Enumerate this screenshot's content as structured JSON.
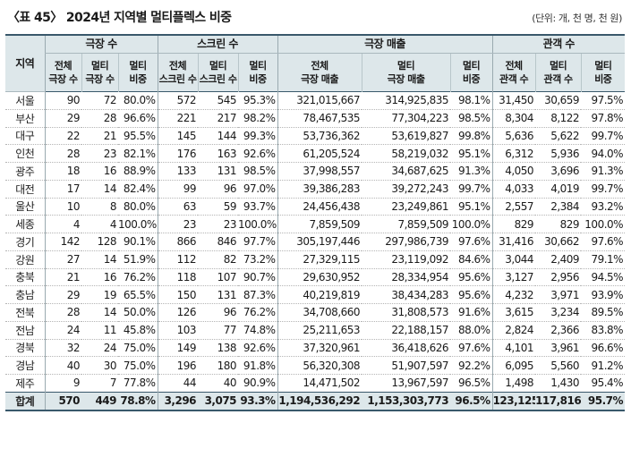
{
  "title": "〈표 45〉 2024년 지역별 멀티플렉스 비중",
  "unit": "(단위: 개, 천 명, 천 원)",
  "headers": {
    "region": "지역",
    "groups": [
      "극장 수",
      "스크린 수",
      "극장 매출",
      "관객 수"
    ],
    "sub": [
      [
        "전체",
        "극장 수"
      ],
      [
        "멀티",
        "극장 수"
      ],
      [
        "멀티",
        "비중"
      ],
      [
        "전체",
        "스크린 수"
      ],
      [
        "멀티",
        "스크린 수"
      ],
      [
        "멀티",
        "비중"
      ],
      [
        "전체",
        "극장 매출"
      ],
      [
        "멀티",
        "극장 매출"
      ],
      [
        "멀티",
        "비중"
      ],
      [
        "전체",
        "관객 수"
      ],
      [
        "멀티",
        "관객 수"
      ],
      [
        "멀티",
        "비중"
      ]
    ]
  },
  "rows": [
    [
      "서울",
      "90",
      "72",
      "80.0%",
      "572",
      "545",
      "95.3%",
      "321,015,667",
      "314,925,835",
      "98.1%",
      "31,450",
      "30,659",
      "97.5%"
    ],
    [
      "부산",
      "29",
      "28",
      "96.6%",
      "221",
      "217",
      "98.2%",
      "78,467,535",
      "77,304,223",
      "98.5%",
      "8,304",
      "8,122",
      "97.8%"
    ],
    [
      "대구",
      "22",
      "21",
      "95.5%",
      "145",
      "144",
      "99.3%",
      "53,736,362",
      "53,619,827",
      "99.8%",
      "5,636",
      "5,622",
      "99.7%"
    ],
    [
      "인천",
      "28",
      "23",
      "82.1%",
      "176",
      "163",
      "92.6%",
      "61,205,524",
      "58,219,032",
      "95.1%",
      "6,312",
      "5,936",
      "94.0%"
    ],
    [
      "광주",
      "18",
      "16",
      "88.9%",
      "133",
      "131",
      "98.5%",
      "37,998,557",
      "34,687,625",
      "91.3%",
      "4,050",
      "3,696",
      "91.3%"
    ],
    [
      "대전",
      "17",
      "14",
      "82.4%",
      "99",
      "96",
      "97.0%",
      "39,386,283",
      "39,272,243",
      "99.7%",
      "4,033",
      "4,019",
      "99.7%"
    ],
    [
      "울산",
      "10",
      "8",
      "80.0%",
      "63",
      "59",
      "93.7%",
      "24,456,438",
      "23,249,861",
      "95.1%",
      "2,557",
      "2,384",
      "93.2%"
    ],
    [
      "세종",
      "4",
      "4",
      "100.0%",
      "23",
      "23",
      "100.0%",
      "7,859,509",
      "7,859,509",
      "100.0%",
      "829",
      "829",
      "100.0%"
    ],
    [
      "경기",
      "142",
      "128",
      "90.1%",
      "866",
      "846",
      "97.7%",
      "305,197,446",
      "297,986,739",
      "97.6%",
      "31,416",
      "30,662",
      "97.6%"
    ],
    [
      "강원",
      "27",
      "14",
      "51.9%",
      "112",
      "82",
      "73.2%",
      "27,329,115",
      "23,119,092",
      "84.6%",
      "3,044",
      "2,409",
      "79.1%"
    ],
    [
      "충북",
      "21",
      "16",
      "76.2%",
      "118",
      "107",
      "90.7%",
      "29,630,952",
      "28,334,954",
      "95.6%",
      "3,127",
      "2,956",
      "94.5%"
    ],
    [
      "충남",
      "29",
      "19",
      "65.5%",
      "150",
      "131",
      "87.3%",
      "40,219,819",
      "38,434,283",
      "95.6%",
      "4,232",
      "3,971",
      "93.9%"
    ],
    [
      "전북",
      "28",
      "14",
      "50.0%",
      "126",
      "96",
      "76.2%",
      "34,708,660",
      "31,808,573",
      "91.6%",
      "3,615",
      "3,234",
      "89.5%"
    ],
    [
      "전남",
      "24",
      "11",
      "45.8%",
      "103",
      "77",
      "74.8%",
      "25,211,653",
      "22,188,157",
      "88.0%",
      "2,824",
      "2,366",
      "83.8%"
    ],
    [
      "경북",
      "32",
      "24",
      "75.0%",
      "149",
      "138",
      "92.6%",
      "37,320,961",
      "36,418,626",
      "97.6%",
      "4,101",
      "3,961",
      "96.6%"
    ],
    [
      "경남",
      "40",
      "30",
      "75.0%",
      "196",
      "180",
      "91.8%",
      "56,320,308",
      "51,907,597",
      "92.2%",
      "6,095",
      "5,560",
      "91.2%"
    ],
    [
      "제주",
      "9",
      "7",
      "77.8%",
      "44",
      "40",
      "90.9%",
      "14,471,502",
      "13,967,597",
      "96.5%",
      "1,498",
      "1,430",
      "95.4%"
    ]
  ],
  "total": [
    "합계",
    "570",
    "449",
    "78.8%",
    "3,296",
    "3,075",
    "93.3%",
    "1,194,536,292",
    "1,153,303,773",
    "96.5%",
    "123,125",
    "117,816",
    "95.7%"
  ]
}
